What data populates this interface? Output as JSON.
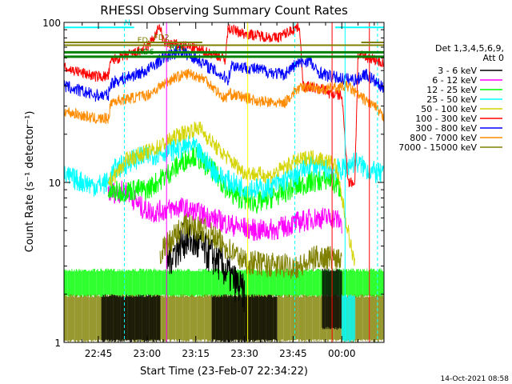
{
  "chart_data": {
    "type": "line",
    "title": "RHESSI Observing Summary Count Rates",
    "xlabel": "Start Time (23-Feb-07 22:34:22)",
    "ylabel": "Count Rate (s⁻¹ detector⁻¹)",
    "y_scale": "log",
    "ylim": [
      1,
      100
    ],
    "xlim_minutes_from_2240": [
      -5.6,
      93
    ],
    "y_tick_labels": [
      "1",
      "10",
      "100"
    ],
    "x_tick_labels": [
      "22:45",
      "23:00",
      "23:15",
      "23:30",
      "23:45",
      "00:00"
    ],
    "x_tick_minutes": [
      5,
      20,
      35,
      50,
      65,
      80
    ],
    "legend": {
      "placement": "top-right, outside plot",
      "header": [
        "Det 1,3,4,5,6,9,",
        "Att 0"
      ]
    },
    "series": [
      {
        "name": "3 - 6 keV",
        "color": "#000000"
      },
      {
        "name": "6 - 12 keV",
        "color": "#ff00ff"
      },
      {
        "name": "12 - 25 keV",
        "color": "#00ff00"
      },
      {
        "name": "25 - 50 keV",
        "color": "#00ffff"
      },
      {
        "name": "50 - 100 keV",
        "color": "#d4d400"
      },
      {
        "name": "100 - 300 keV",
        "color": "#ff0000"
      },
      {
        "name": "300 - 800 keV",
        "color": "#0000ff"
      },
      {
        "name": "800 - 7000 keV",
        "color": "#ff8c00"
      },
      {
        "name": "7000 - 15000 keV",
        "color": "#808000"
      }
    ],
    "flags": [
      {
        "label": "N",
        "color": "#00ffff",
        "y": 93
      },
      {
        "label": "FD2",
        "color": "#808000",
        "y": 75
      },
      {
        "label": "FD",
        "color": "#808000",
        "y": 72
      },
      {
        "label": "RDC",
        "color": "#008000",
        "y": 65
      },
      {
        "label": "RD6",
        "color": "#008000",
        "y": 61
      }
    ],
    "timestamp": "14-Oct-2021 08:58"
  }
}
